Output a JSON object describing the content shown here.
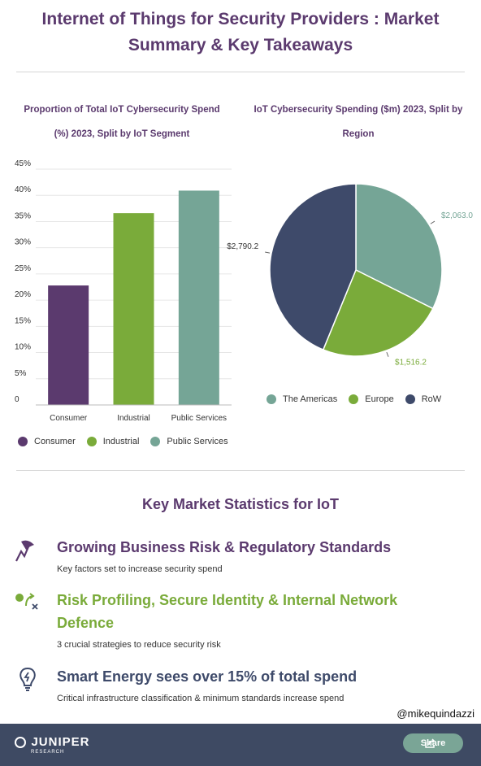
{
  "page": {
    "title_line1": "Internet of Things for Security Providers : Market",
    "title_line2": "Summary & Key Takeaways"
  },
  "colors": {
    "purple": "#5b3a6e",
    "green": "#7aab3a",
    "teal": "#75a596",
    "navy": "#3e4a6a",
    "footer": "#3e4a63"
  },
  "chart_data": [
    {
      "type": "bar",
      "title_line1": "Proportion of Total IoT Cybersecurity Spend",
      "title_line2": "(%) 2023, Split by IoT Segment",
      "categories": [
        "Consumer",
        "Industrial",
        "Public Services"
      ],
      "values": [
        22.8,
        36.6,
        40.9
      ],
      "colors": [
        "#5b3a6e",
        "#7aab3a",
        "#75a596"
      ],
      "ylim": [
        0,
        45
      ],
      "yticks": [
        "0",
        "5%",
        "10%",
        "15%",
        "20%",
        "25%",
        "30%",
        "35%",
        "40%",
        "45%"
      ],
      "ytick_values": [
        0,
        5,
        10,
        15,
        20,
        25,
        30,
        35,
        40,
        45
      ],
      "legend": [
        "Consumer",
        "Industrial",
        "Public Services"
      ],
      "legend_position": "bottom-left"
    },
    {
      "type": "pie",
      "title_line1": "IoT Cybersecurity Spending ($m) 2023, Split by",
      "title_line2": "Region",
      "categories": [
        "The Americas",
        "Europe",
        "RoW"
      ],
      "values": [
        2063.0,
        1516.2,
        2790.2
      ],
      "labels": [
        "$2,063.0",
        "$1,516.2",
        "$2,790.2"
      ],
      "colors": [
        "#75a596",
        "#7aab3a",
        "#3e4a6a"
      ],
      "legend": [
        "The Americas",
        "Europe",
        "RoW"
      ],
      "legend_position": "bottom"
    }
  ],
  "stats": {
    "heading": "Key Market Statistics for IoT",
    "items": [
      {
        "title": "Growing Business Risk & Regulatory Standards",
        "desc": "Key factors set to increase security spend",
        "icon": "chart-trend-icon"
      },
      {
        "title_line1": "Risk Profiling, Secure Identity & Internal Network",
        "title_line2": "Defence",
        "desc": "3 crucial strategies to reduce security risk",
        "icon": "strategy-icon"
      },
      {
        "title": "Smart Energy sees over 15% of total spend",
        "desc": "Critical infrastructure classification & minimum standards increase spend",
        "icon": "lightbulb-icon"
      }
    ]
  },
  "credit": "@mikequindazzi",
  "footer": {
    "logo_main": "JUNIPER",
    "logo_sub": "RESEARCH",
    "share_label": "Share"
  }
}
